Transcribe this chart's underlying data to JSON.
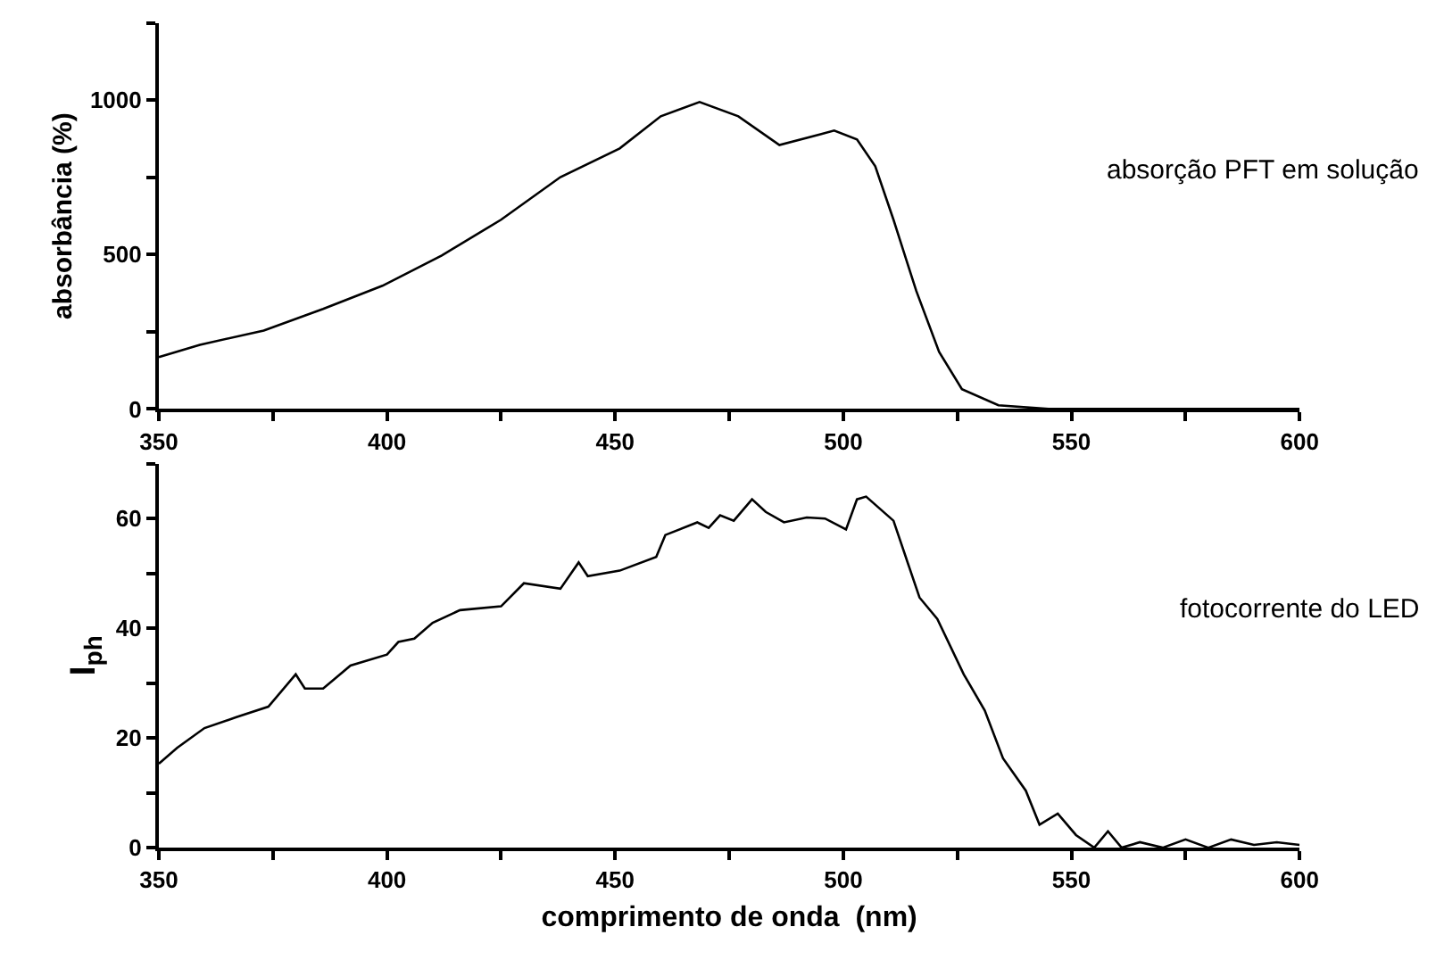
{
  "chart_data": [
    {
      "type": "line",
      "ylabel": "absorbância (%)",
      "annotations": [
        "absorção PFT em solução"
      ],
      "x": [
        350,
        359,
        373,
        386,
        399,
        412,
        425,
        438,
        451,
        460,
        468.5,
        477,
        486,
        495,
        498,
        503,
        507,
        511,
        516,
        521,
        526,
        534,
        545,
        600
      ],
      "series": [
        {
          "color": "#000000",
          "values": [
            168,
            208,
            254,
            324,
            399,
            497,
            613,
            751,
            844,
            948,
            994,
            948,
            855,
            890,
            902,
            873,
            786,
            613,
            382,
            185,
            64,
            12,
            0,
            0
          ]
        }
      ],
      "xlim": [
        350,
        600
      ],
      "xticks": [
        350,
        {
          "value": 375,
          "label": null
        },
        400,
        {
          "value": 425,
          "label": null
        },
        450,
        {
          "value": 475,
          "label": null
        },
        500,
        {
          "value": 525,
          "label": null
        },
        550,
        {
          "value": 575,
          "label": null
        },
        600
      ],
      "ylim": [
        0,
        1250
      ],
      "yticks": [
        0,
        {
          "value": 250,
          "label": null
        },
        500,
        {
          "value": 750,
          "label": null
        },
        1000,
        {
          "value": 1250,
          "label": null
        }
      ],
      "marker": "none",
      "line_style": "solid"
    },
    {
      "type": "line",
      "xlabel": "comprimento de onda  (nm)",
      "ylabel": "I$_{ph}$",
      "annotations": [
        "fotocorrente do LED"
      ],
      "x": [
        350,
        354,
        360,
        367,
        374,
        380,
        382,
        386,
        392,
        400,
        402.5,
        406,
        410,
        416,
        425,
        430,
        438,
        442,
        444,
        451,
        459,
        461,
        468,
        470.5,
        473,
        476,
        480,
        483,
        487,
        492,
        496,
        500.6,
        503,
        505,
        511,
        516.7,
        520.6,
        526.4,
        531,
        535,
        540,
        543,
        547,
        551,
        555,
        558,
        561,
        565,
        570,
        575,
        580,
        585,
        590,
        595,
        600
      ],
      "series": [
        {
          "color": "#000000",
          "values": [
            15.3,
            18.2,
            21.8,
            23.8,
            25.7,
            31.6,
            29,
            29,
            33.2,
            35.2,
            37.5,
            38.1,
            41,
            43.3,
            44,
            48.2,
            47.2,
            52,
            49.5,
            50.5,
            53,
            57,
            59.3,
            58.3,
            60.6,
            59.6,
            63.5,
            61.2,
            59.3,
            60.2,
            60,
            58,
            63.5,
            64,
            59.6,
            45.6,
            41.7,
            31.6,
            25,
            16.3,
            10.4,
            4.2,
            6.2,
            2.3,
            0,
            3,
            0,
            1,
            0,
            1.5,
            0,
            1.5,
            0.5,
            1,
            0.5
          ]
        }
      ],
      "xlim": [
        350,
        600
      ],
      "xticks": [
        350,
        {
          "value": 375,
          "label": null
        },
        400,
        {
          "value": 425,
          "label": null
        },
        450,
        {
          "value": 475,
          "label": null
        },
        500,
        {
          "value": 525,
          "label": null
        },
        550,
        {
          "value": 575,
          "label": null
        },
        600
      ],
      "ylim": [
        0,
        70
      ],
      "yticks": [
        0,
        {
          "value": 10,
          "label": null
        },
        20,
        {
          "value": 30,
          "label": null
        },
        40,
        {
          "value": 50,
          "label": null
        },
        60,
        {
          "value": 70,
          "label": null
        }
      ],
      "marker": "none",
      "line_style": "solid"
    }
  ]
}
